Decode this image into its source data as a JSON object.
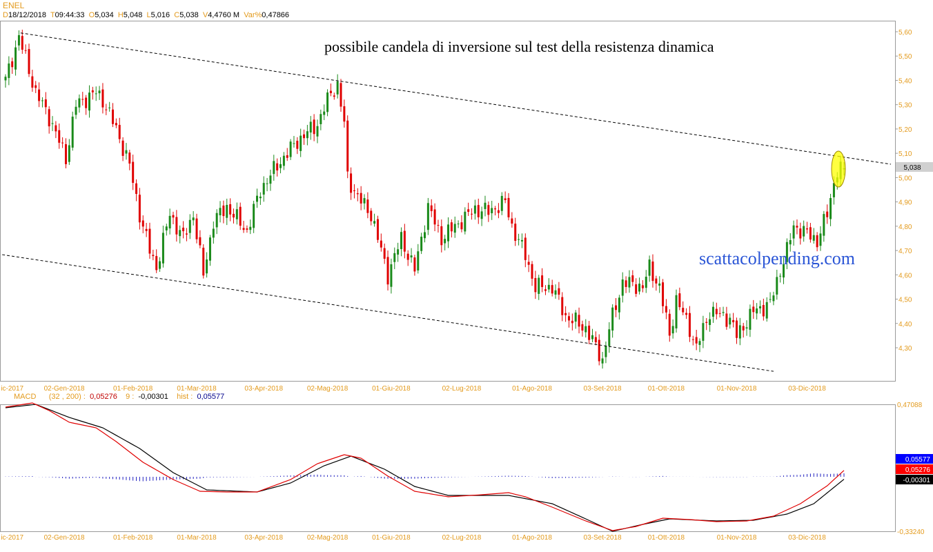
{
  "header": {
    "symbol": "ENEL",
    "d_label": "D",
    "date": "18/12/2018",
    "t_label": "T",
    "time": "09:44:33",
    "o_label": "O",
    "open": "5,034",
    "h_label": "H",
    "high": "5,048",
    "l_label": "L",
    "low": "5,016",
    "c_label": "C",
    "close": "5,038",
    "v_label": "V",
    "volume": "4,4760 M",
    "var_label": "Var%",
    "var": "0,47866"
  },
  "annotation": "possibile candela di inversione sul test della resistenza dinamica",
  "watermark": "scattacolpending.com",
  "macd_legend": {
    "name": "MACD",
    "params": "(32 , 200) :",
    "macd": "0,05276",
    "sig_label": "9 :",
    "signal": "-0,00301",
    "hist_label": "hist :",
    "hist": "0,05577"
  },
  "chart_data": [
    {
      "type": "candlestick",
      "ylim": [
        4.2,
        5.64
      ],
      "price_ticks": [
        "5,60",
        "5,50",
        "5,40",
        "5,30",
        "5,20",
        "5,10",
        "5,00",
        "4,90",
        "4,80",
        "4,70",
        "4,60",
        "4,50",
        "4,40",
        "4,30"
      ],
      "last_price": "5,038",
      "x_ticks": [
        {
          "day": 2,
          "label": "ic-2017"
        },
        {
          "day": 17.5,
          "label": "02-Gen-2018"
        },
        {
          "day": 38,
          "label": "01-Feb-2018"
        },
        {
          "day": 57,
          "label": "01-Mar-2018"
        },
        {
          "day": 77,
          "label": "03-Apr-2018"
        },
        {
          "day": 96,
          "label": "02-Mag-2018"
        },
        {
          "day": 115,
          "label": "01-Giu-2018"
        },
        {
          "day": 136,
          "label": "02-Lug-2018"
        },
        {
          "day": 157,
          "label": "01-Ago-2018"
        },
        {
          "day": 178,
          "label": "03-Set-2018"
        },
        {
          "day": 197,
          "label": "01-Ott-2018"
        },
        {
          "day": 218,
          "label": "01-Nov-2018"
        },
        {
          "day": 239,
          "label": "03-Dic-2018"
        }
      ],
      "close_path": [
        [
          0,
          5.4
        ],
        [
          4,
          5.58
        ],
        [
          9,
          5.35
        ],
        [
          13,
          5.25
        ],
        [
          18,
          5.08
        ],
        [
          21,
          5.3
        ],
        [
          27,
          5.35
        ],
        [
          29,
          5.32
        ],
        [
          33,
          5.2
        ],
        [
          37,
          5.05
        ],
        [
          40,
          4.85
        ],
        [
          43,
          4.7
        ],
        [
          45,
          4.63
        ],
        [
          49,
          4.85
        ],
        [
          53,
          4.75
        ],
        [
          56,
          4.85
        ],
        [
          59,
          4.6
        ],
        [
          62,
          4.82
        ],
        [
          66,
          4.88
        ],
        [
          72,
          4.78
        ],
        [
          76,
          4.95
        ],
        [
          81,
          5.05
        ],
        [
          87,
          5.15
        ],
        [
          93,
          5.22
        ],
        [
          97,
          5.35
        ],
        [
          99,
          5.38
        ],
        [
          101,
          5.22
        ],
        [
          102,
          5.0
        ],
        [
          105,
          4.92
        ],
        [
          109,
          4.85
        ],
        [
          114,
          4.6
        ],
        [
          118,
          4.75
        ],
        [
          122,
          4.62
        ],
        [
          126,
          4.88
        ],
        [
          130,
          4.75
        ],
        [
          134,
          4.8
        ],
        [
          140,
          4.87
        ],
        [
          144,
          4.86
        ],
        [
          149,
          4.9
        ],
        [
          151,
          4.8
        ],
        [
          155,
          4.68
        ],
        [
          158,
          4.55
        ],
        [
          163,
          4.55
        ],
        [
          167,
          4.43
        ],
        [
          173,
          4.38
        ],
        [
          178,
          4.25
        ],
        [
          180,
          4.38
        ],
        [
          184,
          4.57
        ],
        [
          190,
          4.55
        ],
        [
          192,
          4.63
        ],
        [
          195,
          4.55
        ],
        [
          198,
          4.35
        ],
        [
          200,
          4.5
        ],
        [
          204,
          4.38
        ],
        [
          206,
          4.3
        ],
        [
          210,
          4.45
        ],
        [
          216,
          4.42
        ],
        [
          218,
          4.35
        ],
        [
          223,
          4.45
        ],
        [
          228,
          4.48
        ],
        [
          231,
          4.62
        ],
        [
          233,
          4.7
        ],
        [
          235,
          4.8
        ],
        [
          239,
          4.77
        ],
        [
          242,
          4.74
        ],
        [
          245,
          4.85
        ],
        [
          247,
          4.98
        ],
        [
          248,
          5.03
        ],
        [
          250,
          5.038
        ]
      ],
      "trendlines": [
        {
          "name": "resistenza",
          "from": [
            4.5,
            5.595
          ],
          "to": [
            264,
            5.055
          ]
        },
        {
          "name": "supporto",
          "from": [
            -1,
            4.683
          ],
          "to": [
            229,
            4.203
          ]
        }
      ]
    },
    {
      "type": "line",
      "name": "MACD",
      "ylim": [
        -0.3324,
        0.47088
      ],
      "y_top_label": "0,47088",
      "y_bottom_label": "-0,33240",
      "series": [
        {
          "name": "MACD",
          "color": "#e00000",
          "points": [
            [
              0,
              0.4534
            ],
            [
              8,
              0.4796
            ],
            [
              13,
              0.4316
            ],
            [
              19,
              0.3574
            ],
            [
              27,
              0.3224
            ],
            [
              33,
              0.2351
            ],
            [
              41,
              0.1042
            ],
            [
              50,
              -0.005
            ],
            [
              58,
              -0.0792
            ],
            [
              66,
              -0.0836
            ],
            [
              75,
              -0.0836
            ],
            [
              85,
              -0.005
            ],
            [
              93,
              0.0954
            ],
            [
              101,
              0.1522
            ],
            [
              106,
              0.1303
            ],
            [
              114,
              0.0168
            ],
            [
              122,
              -0.0792
            ],
            [
              132,
              -0.1141
            ],
            [
              142,
              -0.101
            ],
            [
              150,
              -0.0879
            ],
            [
              155,
              -0.1141
            ],
            [
              163,
              -0.1796
            ],
            [
              173,
              -0.2669
            ],
            [
              181,
              -0.328
            ],
            [
              188,
              -0.3018
            ],
            [
              196,
              -0.2495
            ],
            [
              204,
              -0.2582
            ],
            [
              212,
              -0.2713
            ],
            [
              221,
              -0.2669
            ],
            [
              229,
              -0.2364
            ],
            [
              237,
              -0.1578
            ],
            [
              245,
              -0.0443
            ],
            [
              250,
              0.05276
            ]
          ]
        },
        {
          "name": "Signal",
          "color": "#000000",
          "points": [
            [
              0,
              0.449
            ],
            [
              9,
              0.4709
            ],
            [
              19,
              0.388
            ],
            [
              29,
              0.3224
            ],
            [
              40,
              0.1915
            ],
            [
              50,
              0.0387
            ],
            [
              60,
              -0.0705
            ],
            [
              75,
              -0.0836
            ],
            [
              85,
              -0.0268
            ],
            [
              95,
              0.0823
            ],
            [
              103,
              0.1434
            ],
            [
              113,
              0.0605
            ],
            [
              122,
              -0.0487
            ],
            [
              132,
              -0.1054
            ],
            [
              150,
              -0.1054
            ],
            [
              163,
              -0.1578
            ],
            [
              173,
              -0.2538
            ],
            [
              181,
              -0.3324
            ],
            [
              190,
              -0.2887
            ],
            [
              198,
              -0.2538
            ],
            [
              212,
              -0.2669
            ],
            [
              223,
              -0.2626
            ],
            [
              233,
              -0.2233
            ],
            [
              241,
              -0.1578
            ],
            [
              250,
              -0.00301
            ]
          ]
        }
      ],
      "badges": [
        {
          "value": "0,05577",
          "color": "#0000ff"
        },
        {
          "value": "0,05276",
          "color": "#ff0000"
        },
        {
          "value": "-0,00301",
          "color": "#000000"
        }
      ]
    }
  ]
}
